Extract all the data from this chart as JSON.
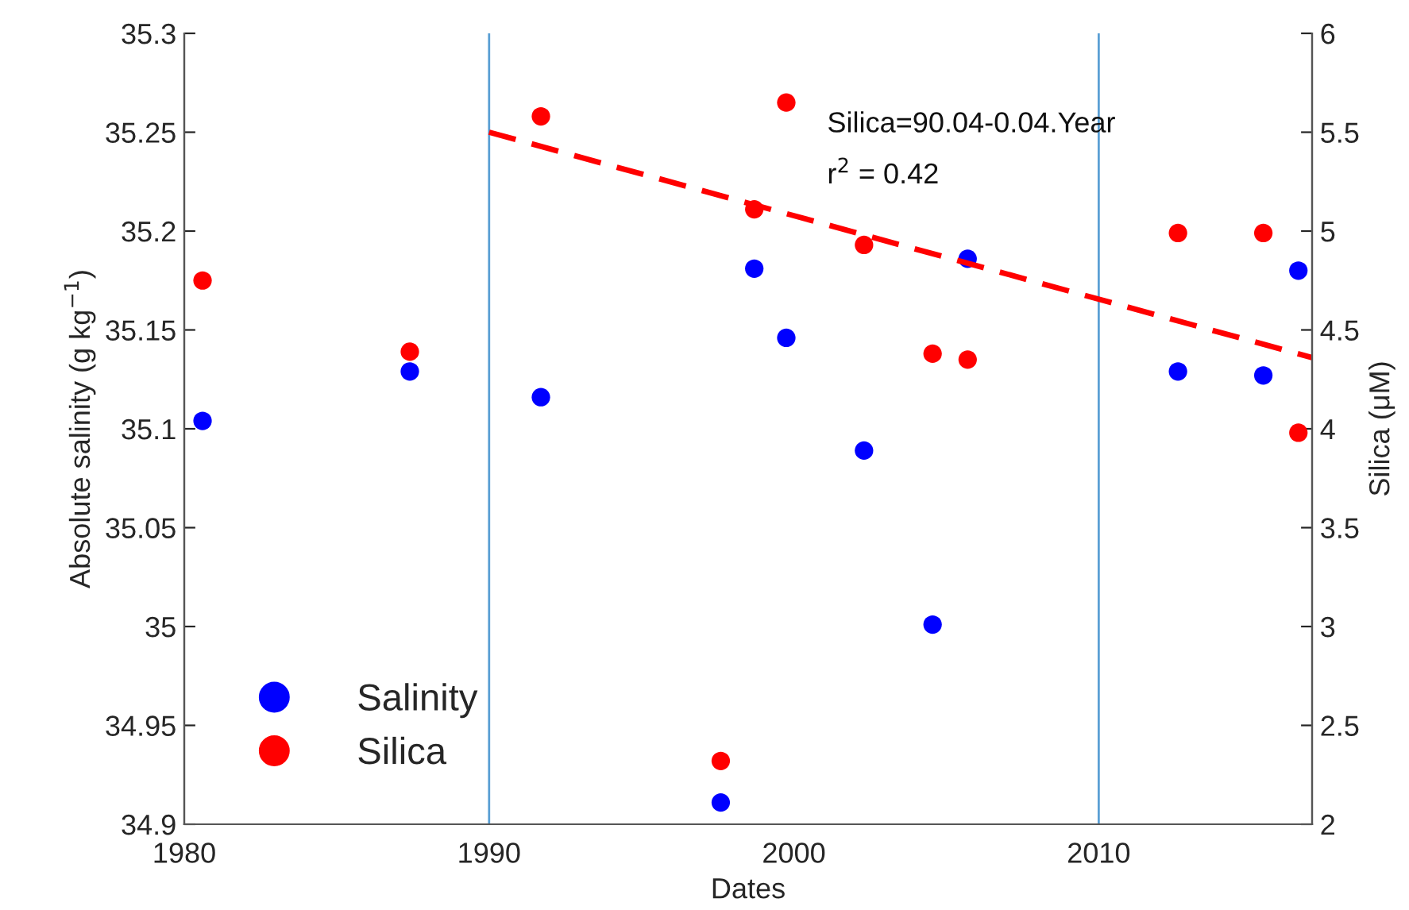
{
  "chart_data": {
    "type": "scatter",
    "xlabel": "Dates",
    "ylabel": "Absolute salinity (g kg$^{−1}$)",
    "y2label": "Silica (μM)",
    "xlim": [
      1980,
      2017
    ],
    "xticks": [
      1980,
      1990,
      2000,
      2010
    ],
    "ylim": [
      34.9,
      35.3
    ],
    "yticks": [
      34.9,
      34.95,
      35,
      35.05,
      35.1,
      35.15,
      35.2,
      35.25,
      35.3
    ],
    "y2lim": [
      2,
      6
    ],
    "y2ticks": [
      2,
      2.5,
      3,
      3.5,
      4,
      4.5,
      5,
      5.5,
      6
    ],
    "grid": false,
    "legend": "bottom left",
    "marker": "circle",
    "series": [
      {
        "name": "Salinity",
        "color": "#0000ff",
        "x": [
          1980.6,
          1987.4,
          1991.7,
          1997.6,
          1998.7,
          1999.75,
          2002.3,
          2004.55,
          2005.7,
          2012.6,
          2015.4,
          2016.55
        ],
        "values": [
          35.104,
          35.129,
          35.116,
          34.911,
          35.181,
          35.146,
          35.089,
          35.001,
          35.186,
          35.129,
          35.127,
          35.18
        ]
      },
      {
        "name": "Silica",
        "color": "#ff0000",
        "axis": "y2",
        "x": [
          1980.6,
          1987.4,
          1991.7,
          1997.6,
          1998.7,
          1999.75,
          2002.3,
          2004.55,
          2005.7,
          2012.6,
          2015.4,
          2016.55
        ],
        "values": [
          4.75,
          4.39,
          5.58,
          2.32,
          5.11,
          5.65,
          4.93,
          4.38,
          4.35,
          4.99,
          4.99,
          3.98
        ]
      },
      {
        "color": "#ff0000",
        "type": "line",
        "axis": "y2",
        "line_style": "dashed",
        "marker": "none",
        "x": [
          1990,
          2017
        ],
        "values": [
          5.5,
          4.36
        ]
      }
    ],
    "ref_lines": [
      {
        "axis": "x",
        "value": 1990,
        "color": "#5a9fd4"
      },
      {
        "axis": "x",
        "value": 2010,
        "color": "#5a9fd4"
      }
    ],
    "annotations": [
      "Silica=90.04-0.04.Year",
      "r$^{2}$ = 0.42"
    ]
  }
}
